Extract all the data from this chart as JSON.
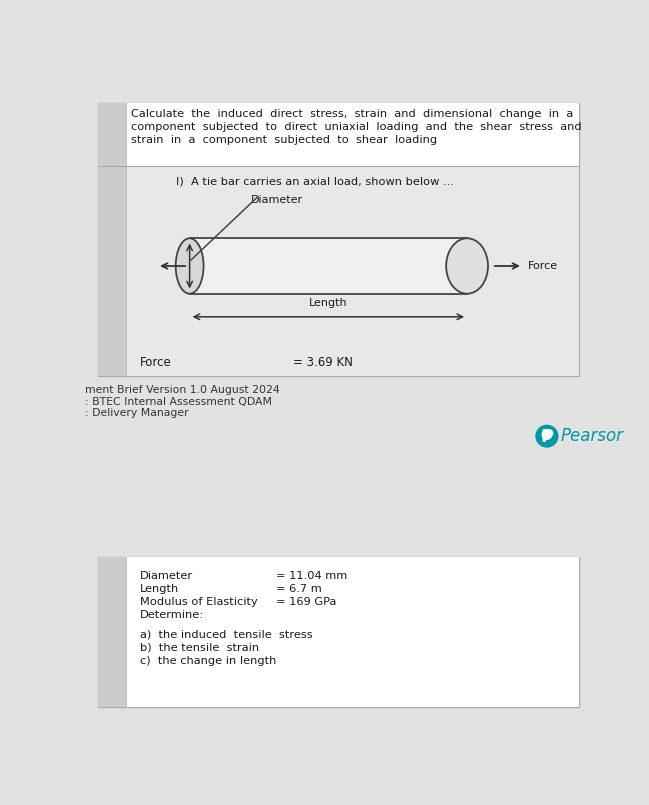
{
  "page_bg": "#e2e2e2",
  "top_box_bg": "#f0f0f0",
  "header_bg": "#ffffff",
  "diag_bg": "#ececec",
  "left_col_color": "#cccccc",
  "border_color": "#aaaaaa",
  "text_color": "#1a1a1a",
  "footer_color": "#333333",
  "pearson_color": "#0097a7",
  "white": "#ffffff",
  "header_line1": "Calculate  the  induced  direct  stress,  strain  and  dimensional  change  in  a",
  "header_line2": "component  subjected  to  direct  uniaxial  loading  and  the  shear  stress  and",
  "header_line3": "strain  in  a  component  subjected  to  shear  loading",
  "problem_intro": "I)  A tie bar carries an axial load, shown below ...",
  "diameter_label": "Diameter",
  "length_label": "Length",
  "force_label": "Force",
  "force_value": "= 3.69 KN",
  "footer_line1": "ment Brief Version 1.0 August 2024",
  "footer_line2": ": BTEC Internal Assessment QDAM",
  "footer_line3": ": Delivery Manager",
  "pearson_text": "Pearsor",
  "box2_label1": "Diameter",
  "box2_label2": "Length",
  "box2_label3": "Modulus of Elasticity",
  "box2_label4": "Determine:",
  "box2_val1": "= 11.04 mm",
  "box2_val2": "= 6.7 m",
  "box2_val3": "= 169 GPa",
  "box2_sub1": "a)  the induced  tensile  stress",
  "box2_sub2": "b)  the tensile  strain",
  "box2_sub3": "c)  the change in length"
}
